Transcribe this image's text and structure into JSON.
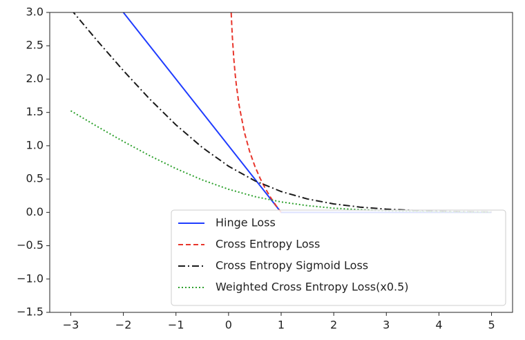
{
  "chart_data": {
    "type": "line",
    "xlim": [
      -3.4,
      5.4
    ],
    "ylim": [
      -1.5,
      3
    ],
    "xticks": [
      {
        "value": -3,
        "label": "−3"
      },
      {
        "value": -2,
        "label": "−2"
      },
      {
        "value": -1,
        "label": "−1"
      },
      0,
      1,
      2,
      3,
      4,
      5
    ],
    "yticks": [
      {
        "value": -1.5,
        "label": "−1.5"
      },
      {
        "value": -1,
        "label": "−1.0"
      },
      {
        "value": -0.5,
        "label": "−0.5"
      },
      {
        "value": 0,
        "label": "0.0"
      },
      0.5,
      {
        "value": 1,
        "label": "1.0"
      },
      1.5,
      {
        "value": 2,
        "label": "2.0"
      },
      2.5,
      {
        "value": 3,
        "label": "3.0"
      }
    ],
    "legend": "lower right",
    "series": [
      {
        "name": "Hinge Loss",
        "color": "#1f3cff",
        "linestyle": "solid",
        "x": [
          -3,
          1,
          5
        ],
        "values": [
          4,
          0,
          0
        ]
      },
      {
        "name": "Cross Entropy Loss",
        "color": "#e8352b",
        "linestyle": "dashed",
        "x": [
          0.05,
          0.07,
          0.1,
          0.125,
          0.15,
          0.2,
          0.3,
          0.4,
          0.5,
          0.6,
          0.7,
          0.8,
          0.9,
          1.0
        ],
        "values": [
          2.996,
          2.659,
          2.303,
          2.079,
          1.897,
          1.609,
          1.204,
          0.916,
          0.693,
          0.511,
          0.357,
          0.223,
          0.105,
          0
        ]
      },
      {
        "name": "Cross Entropy Sigmoid Loss",
        "color": "#1a1a1a",
        "linestyle": "dashdot",
        "x": [
          -3,
          -2.5,
          -2,
          -1.5,
          -1,
          -0.5,
          0,
          0.5,
          1,
          1.5,
          2,
          2.5,
          3,
          3.5,
          4,
          4.5,
          5
        ],
        "values": [
          3.049,
          2.579,
          2.127,
          1.701,
          1.313,
          0.974,
          0.693,
          0.474,
          0.313,
          0.201,
          0.127,
          0.079,
          0.049,
          0.03,
          0.018,
          0.011,
          0.007
        ]
      },
      {
        "name": "Weighted Cross Entropy Loss(x0.5)",
        "color": "#2ca02c",
        "linestyle": "dotted",
        "x": [
          -3,
          -2.5,
          -2,
          -1.5,
          -1,
          -0.5,
          0,
          0.5,
          1,
          1.5,
          2,
          2.5,
          3,
          3.5,
          4,
          4.5,
          5
        ],
        "values": [
          1.524,
          1.29,
          1.064,
          0.851,
          0.657,
          0.487,
          0.347,
          0.237,
          0.157,
          0.101,
          0.063,
          0.04,
          0.024,
          0.015,
          0.009,
          0.006,
          0.003
        ]
      }
    ]
  }
}
